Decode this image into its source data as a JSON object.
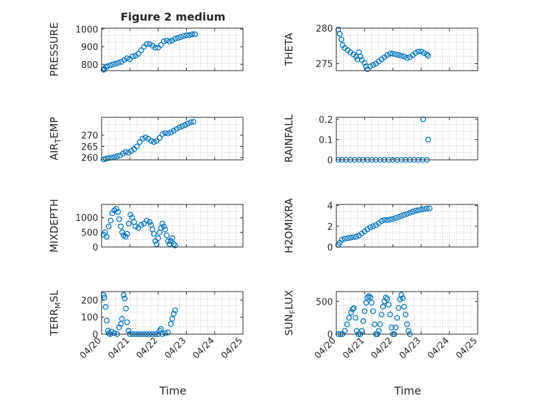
{
  "figure": {
    "title": "Figure 2 medium",
    "xlabel": "Time"
  },
  "marker_color": "#0072bd",
  "chart_data": [
    {
      "type": "scatter",
      "ylabel": "PRESSURE",
      "yticks": [
        "1000",
        "900",
        "800"
      ],
      "ylim": [
        765,
        1005
      ],
      "xlim": [
        0,
        5
      ],
      "x_tick_labels": [
        "04/20",
        "04/21",
        "04/22",
        "04/23",
        "04/24",
        "04/25"
      ],
      "grid": true,
      "points": [
        [
          0.07,
          770
        ],
        [
          0.1,
          775
        ],
        [
          0.15,
          785
        ],
        [
          0.2,
          790
        ],
        [
          0.3,
          795
        ],
        [
          0.4,
          800
        ],
        [
          0.5,
          805
        ],
        [
          0.6,
          810
        ],
        [
          0.7,
          815
        ],
        [
          0.8,
          825
        ],
        [
          0.9,
          835
        ],
        [
          1.0,
          830
        ],
        [
          1.1,
          845
        ],
        [
          1.2,
          850
        ],
        [
          1.3,
          860
        ],
        [
          1.4,
          880
        ],
        [
          1.5,
          900
        ],
        [
          1.6,
          915
        ],
        [
          1.7,
          915
        ],
        [
          1.8,
          905
        ],
        [
          1.9,
          895
        ],
        [
          2.0,
          895
        ],
        [
          2.1,
          910
        ],
        [
          2.2,
          930
        ],
        [
          2.3,
          935
        ],
        [
          2.4,
          930
        ],
        [
          2.5,
          935
        ],
        [
          2.6,
          945
        ],
        [
          2.7,
          950
        ],
        [
          2.8,
          955
        ],
        [
          2.9,
          960
        ],
        [
          3.0,
          965
        ],
        [
          3.1,
          965
        ],
        [
          3.2,
          970
        ],
        [
          3.3,
          970
        ]
      ]
    },
    {
      "type": "scatter",
      "ylabel": "THETA",
      "yticks": [
        "280",
        "275"
      ],
      "ylim": [
        274,
        280
      ],
      "xlim": [
        0,
        5
      ],
      "x_tick_labels": [
        "04/20",
        "04/21",
        "04/22",
        "04/23",
        "04/24",
        "04/25"
      ],
      "grid": true,
      "points": [
        [
          0.07,
          279.8
        ],
        [
          0.12,
          279.2
        ],
        [
          0.18,
          278.4
        ],
        [
          0.22,
          277.6
        ],
        [
          0.3,
          277.2
        ],
        [
          0.4,
          276.9
        ],
        [
          0.5,
          276.6
        ],
        [
          0.6,
          276.3
        ],
        [
          0.7,
          276.0
        ],
        [
          0.75,
          275.6
        ],
        [
          0.8,
          276.6
        ],
        [
          0.85,
          276.0
        ],
        [
          0.9,
          275.5
        ],
        [
          1.0,
          275.1
        ],
        [
          1.05,
          274.6
        ],
        [
          1.1,
          274.2
        ],
        [
          1.2,
          274.6
        ],
        [
          1.3,
          274.8
        ],
        [
          1.4,
          275.0
        ],
        [
          1.5,
          275.3
        ],
        [
          1.6,
          275.6
        ],
        [
          1.7,
          275.9
        ],
        [
          1.8,
          276.2
        ],
        [
          1.9,
          276.4
        ],
        [
          2.0,
          276.4
        ],
        [
          2.1,
          276.3
        ],
        [
          2.2,
          276.2
        ],
        [
          2.3,
          276.1
        ],
        [
          2.4,
          276.0
        ],
        [
          2.5,
          275.8
        ],
        [
          2.6,
          275.9
        ],
        [
          2.7,
          276.2
        ],
        [
          2.8,
          276.5
        ],
        [
          2.9,
          276.7
        ],
        [
          3.0,
          276.7
        ],
        [
          3.1,
          276.5
        ],
        [
          3.2,
          276.3
        ],
        [
          3.25,
          276.1
        ]
      ]
    },
    {
      "type": "scatter",
      "ylabel": "AIR_TEMP",
      "yticks": [
        "270",
        "265",
        "260"
      ],
      "ylim": [
        259,
        278
      ],
      "xlim": [
        0,
        5
      ],
      "x_tick_labels": [
        "04/20",
        "04/21",
        "04/22",
        "04/23",
        "04/24",
        "04/25"
      ],
      "grid": true,
      "points": [
        [
          0.07,
          259.2
        ],
        [
          0.15,
          259.5
        ],
        [
          0.25,
          259.8
        ],
        [
          0.35,
          260.0
        ],
        [
          0.45,
          260.3
        ],
        [
          0.55,
          260.6
        ],
        [
          0.65,
          261.0
        ],
        [
          0.75,
          261.8
        ],
        [
          0.85,
          262.5
        ],
        [
          0.95,
          262.2
        ],
        [
          1.05,
          263.0
        ],
        [
          1.15,
          263.8
        ],
        [
          1.25,
          265.0
        ],
        [
          1.35,
          267.0
        ],
        [
          1.45,
          268.5
        ],
        [
          1.55,
          269.0
        ],
        [
          1.65,
          268.5
        ],
        [
          1.75,
          267.5
        ],
        [
          1.85,
          267.0
        ],
        [
          1.95,
          267.5
        ],
        [
          2.05,
          268.8
        ],
        [
          2.15,
          270.5
        ],
        [
          2.25,
          271.0
        ],
        [
          2.35,
          270.8
        ],
        [
          2.45,
          271.2
        ],
        [
          2.55,
          272.0
        ],
        [
          2.65,
          272.8
        ],
        [
          2.75,
          273.5
        ],
        [
          2.85,
          274.0
        ],
        [
          2.95,
          274.5
        ],
        [
          3.05,
          275.2
        ],
        [
          3.15,
          275.8
        ],
        [
          3.25,
          276.0
        ]
      ]
    },
    {
      "type": "scatter",
      "ylabel": "RAINFALL",
      "yticks": [
        "0.2",
        "0.1",
        "0"
      ],
      "ylim": [
        0,
        0.21
      ],
      "xlim": [
        0,
        5
      ],
      "x_tick_labels": [
        "04/20",
        "04/21",
        "04/22",
        "04/23",
        "04/24",
        "04/25"
      ],
      "grid": true,
      "points": [
        [
          0.07,
          0
        ],
        [
          0.2,
          0
        ],
        [
          0.35,
          0
        ],
        [
          0.5,
          0
        ],
        [
          0.65,
          0
        ],
        [
          0.8,
          0
        ],
        [
          0.95,
          0
        ],
        [
          1.1,
          0
        ],
        [
          1.25,
          0
        ],
        [
          1.4,
          0
        ],
        [
          1.55,
          0
        ],
        [
          1.7,
          0
        ],
        [
          1.85,
          0
        ],
        [
          2.0,
          0
        ],
        [
          2.15,
          0
        ],
        [
          2.3,
          0
        ],
        [
          2.45,
          0
        ],
        [
          2.6,
          0
        ],
        [
          2.75,
          0
        ],
        [
          2.9,
          0
        ],
        [
          3.05,
          0
        ],
        [
          3.2,
          0
        ],
        [
          3.07,
          0.2
        ],
        [
          3.25,
          0.1
        ]
      ]
    },
    {
      "type": "scatter",
      "ylabel": "MIXDEPTH",
      "yticks": [
        "1000",
        "500",
        "0"
      ],
      "ylim": [
        0,
        1450
      ],
      "xlim": [
        0,
        5
      ],
      "x_tick_labels": [
        "04/20",
        "04/21",
        "04/22",
        "04/23",
        "04/24",
        "04/25"
      ],
      "grid": true,
      "points": [
        [
          0.07,
          420
        ],
        [
          0.12,
          500
        ],
        [
          0.18,
          350
        ],
        [
          0.25,
          700
        ],
        [
          0.32,
          900
        ],
        [
          0.38,
          1150
        ],
        [
          0.45,
          1250
        ],
        [
          0.52,
          1300
        ],
        [
          0.58,
          1200
        ],
        [
          0.62,
          950
        ],
        [
          0.68,
          700
        ],
        [
          0.73,
          500
        ],
        [
          0.78,
          400
        ],
        [
          0.85,
          350
        ],
        [
          0.9,
          450
        ],
        [
          0.96,
          800
        ],
        [
          1.02,
          1100
        ],
        [
          1.08,
          1000
        ],
        [
          1.15,
          850
        ],
        [
          1.2,
          700
        ],
        [
          1.3,
          650
        ],
        [
          1.4,
          750
        ],
        [
          1.5,
          800
        ],
        [
          1.6,
          900
        ],
        [
          1.7,
          850
        ],
        [
          1.75,
          750
        ],
        [
          1.8,
          600
        ],
        [
          1.85,
          450
        ],
        [
          1.9,
          200
        ],
        [
          1.95,
          100
        ],
        [
          2.0,
          300
        ],
        [
          2.05,
          500
        ],
        [
          2.1,
          650
        ],
        [
          2.15,
          800
        ],
        [
          2.2,
          700
        ],
        [
          2.25,
          600
        ],
        [
          2.3,
          400
        ],
        [
          2.35,
          200
        ],
        [
          2.4,
          100
        ],
        [
          2.45,
          200
        ],
        [
          2.5,
          300
        ],
        [
          2.55,
          100
        ],
        [
          2.6,
          50
        ]
      ]
    },
    {
      "type": "scatter",
      "ylabel": "H2OMIXRA",
      "yticks": [
        "4",
        "2",
        "0"
      ],
      "ylim": [
        0,
        4.1
      ],
      "xlim": [
        0,
        5
      ],
      "x_tick_labels": [
        "04/20",
        "04/21",
        "04/22",
        "04/23",
        "04/24",
        "04/25"
      ],
      "grid": true,
      "points": [
        [
          0.07,
          0.2
        ],
        [
          0.12,
          0.4
        ],
        [
          0.2,
          0.7
        ],
        [
          0.3,
          0.8
        ],
        [
          0.4,
          0.85
        ],
        [
          0.5,
          0.9
        ],
        [
          0.6,
          0.95
        ],
        [
          0.7,
          1.0
        ],
        [
          0.8,
          1.1
        ],
        [
          0.9,
          1.3
        ],
        [
          1.0,
          1.5
        ],
        [
          1.1,
          1.7
        ],
        [
          1.2,
          1.9
        ],
        [
          1.3,
          2.0
        ],
        [
          1.4,
          2.1
        ],
        [
          1.5,
          2.3
        ],
        [
          1.6,
          2.5
        ],
        [
          1.7,
          2.6
        ],
        [
          1.8,
          2.6
        ],
        [
          1.9,
          2.65
        ],
        [
          2.0,
          2.7
        ],
        [
          2.1,
          2.8
        ],
        [
          2.2,
          2.9
        ],
        [
          2.3,
          3.0
        ],
        [
          2.4,
          3.1
        ],
        [
          2.5,
          3.2
        ],
        [
          2.6,
          3.3
        ],
        [
          2.7,
          3.4
        ],
        [
          2.8,
          3.5
        ],
        [
          2.9,
          3.55
        ],
        [
          3.0,
          3.6
        ],
        [
          3.1,
          3.65
        ],
        [
          3.2,
          3.7
        ],
        [
          3.3,
          3.72
        ]
      ]
    },
    {
      "type": "scatter",
      "ylabel": "TERR_MSL",
      "yticks": [
        "200",
        "100",
        "0"
      ],
      "ylim": [
        0,
        250
      ],
      "xlim": [
        0,
        5
      ],
      "x_tick_labels": [
        "04/20",
        "04/21",
        "04/22",
        "04/23",
        "04/24",
        "04/25"
      ],
      "grid": true,
      "points": [
        [
          0.07,
          230
        ],
        [
          0.1,
          215
        ],
        [
          0.14,
          160
        ],
        [
          0.18,
          80
        ],
        [
          0.22,
          20
        ],
        [
          0.26,
          5
        ],
        [
          0.3,
          0
        ],
        [
          0.35,
          15
        ],
        [
          0.45,
          5
        ],
        [
          0.55,
          0
        ],
        [
          0.62,
          40
        ],
        [
          0.68,
          60
        ],
        [
          0.72,
          90
        ],
        [
          0.78,
          230
        ],
        [
          0.82,
          210
        ],
        [
          0.86,
          150
        ],
        [
          0.9,
          70
        ],
        [
          0.95,
          20
        ],
        [
          1.0,
          0
        ],
        [
          1.1,
          0
        ],
        [
          1.2,
          0
        ],
        [
          1.3,
          0
        ],
        [
          1.4,
          0
        ],
        [
          1.5,
          0
        ],
        [
          1.6,
          0
        ],
        [
          1.7,
          0
        ],
        [
          1.8,
          0
        ],
        [
          1.9,
          0
        ],
        [
          2.0,
          0
        ],
        [
          2.05,
          20
        ],
        [
          2.1,
          30
        ],
        [
          2.15,
          0
        ],
        [
          2.25,
          5
        ],
        [
          2.35,
          10
        ],
        [
          2.45,
          60
        ],
        [
          2.5,
          90
        ],
        [
          2.55,
          120
        ],
        [
          2.6,
          140
        ]
      ]
    },
    {
      "type": "scatter",
      "ylabel": "SUN_FLUX",
      "yticks": [
        "500",
        "0"
      ],
      "ylim": [
        0,
        650
      ],
      "xlim": [
        0,
        5
      ],
      "x_tick_labels": [
        "04/20",
        "04/21",
        "04/22",
        "04/23",
        "04/24",
        "04/25"
      ],
      "grid": true,
      "points": [
        [
          0.07,
          0
        ],
        [
          0.15,
          0
        ],
        [
          0.22,
          0
        ],
        [
          0.3,
          50
        ],
        [
          0.38,
          150
        ],
        [
          0.45,
          250
        ],
        [
          0.52,
          330
        ],
        [
          0.58,
          380
        ],
        [
          0.62,
          400
        ],
        [
          0.68,
          250
        ],
        [
          0.72,
          50
        ],
        [
          0.78,
          0
        ],
        [
          0.85,
          0
        ],
        [
          0.9,
          50
        ],
        [
          0.95,
          200
        ],
        [
          1.0,
          350
        ],
        [
          1.05,
          480
        ],
        [
          1.1,
          560
        ],
        [
          1.15,
          580
        ],
        [
          1.2,
          560
        ],
        [
          1.25,
          480
        ],
        [
          1.3,
          350
        ],
        [
          1.35,
          150
        ],
        [
          1.4,
          0
        ],
        [
          1.45,
          0
        ],
        [
          1.5,
          50
        ],
        [
          1.55,
          150
        ],
        [
          1.6,
          300
        ],
        [
          1.65,
          420
        ],
        [
          1.7,
          500
        ],
        [
          1.75,
          560
        ],
        [
          1.8,
          540
        ],
        [
          1.85,
          450
        ],
        [
          1.9,
          300
        ],
        [
          1.95,
          100
        ],
        [
          2.0,
          0
        ],
        [
          2.05,
          0
        ],
        [
          2.1,
          100
        ],
        [
          2.15,
          250
        ],
        [
          2.2,
          400
        ],
        [
          2.25,
          530
        ],
        [
          2.3,
          600
        ],
        [
          2.35,
          550
        ],
        [
          2.4,
          420
        ],
        [
          2.45,
          300
        ],
        [
          2.5,
          150
        ],
        [
          2.55,
          50
        ],
        [
          2.6,
          0
        ]
      ]
    }
  ]
}
